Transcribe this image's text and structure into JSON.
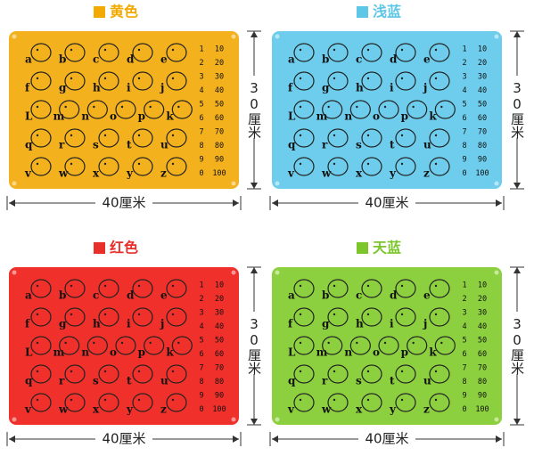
{
  "panels": [
    {
      "label": "黄色",
      "color": "#f2a900",
      "mat_color": "#f3b11d"
    },
    {
      "label": "浅蓝",
      "color": "#5ec6e6",
      "mat_color": "#6ecdec"
    },
    {
      "label": "红色",
      "color": "#e8302a",
      "mat_color": "#f0302a"
    },
    {
      "label": "天蓝",
      "color": "#7cc52b",
      "mat_color": "#8dd03f"
    }
  ],
  "mat": {
    "letters": [
      "a",
      "b",
      "c",
      "d",
      "e",
      "f",
      "g",
      "h",
      "i",
      "j",
      "L",
      "m",
      "n",
      "o",
      "p",
      "k",
      "q",
      "r",
      "s",
      "t",
      "u",
      "v",
      "w",
      "x",
      "y",
      "z"
    ],
    "numbers": [
      [
        1,
        10
      ],
      [
        2,
        20
      ],
      [
        3,
        30
      ],
      [
        4,
        40
      ],
      [
        5,
        50
      ],
      [
        6,
        60
      ],
      [
        7,
        70
      ],
      [
        8,
        80
      ],
      [
        9,
        90
      ],
      [
        0,
        100
      ]
    ]
  },
  "width_label": "40厘米",
  "height_label": "30厘米"
}
